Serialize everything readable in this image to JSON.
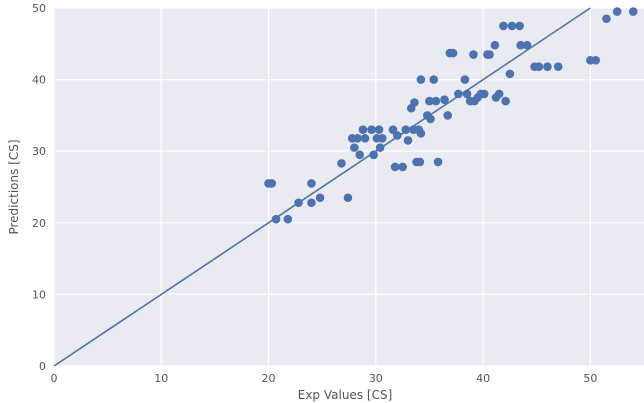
{
  "chart_data": {
    "type": "scatter",
    "title": "",
    "xlabel": "Exp Values [CS]",
    "ylabel": "Predictions [CS]",
    "xlim": [
      0,
      55
    ],
    "ylim": [
      0,
      50
    ],
    "xticks": [
      0,
      10,
      20,
      30,
      40,
      50
    ],
    "yticks": [
      0,
      10,
      20,
      30,
      40,
      50
    ],
    "grid": true,
    "background": "#EAEAF2",
    "grid_color": "#FFFFFF",
    "marker_color": "#4C72B0",
    "line_color": "#4C72B0",
    "reference_line": {
      "slope": 1,
      "intercept": 0
    },
    "series": [
      {
        "points": [
          [
            20.0,
            25.5
          ],
          [
            20.3,
            25.5
          ],
          [
            20.7,
            20.5
          ],
          [
            21.8,
            20.5
          ],
          [
            22.8,
            22.8
          ],
          [
            24.0,
            22.8
          ],
          [
            24.0,
            25.5
          ],
          [
            24.8,
            23.5
          ],
          [
            26.8,
            28.3
          ],
          [
            27.4,
            23.5
          ],
          [
            27.8,
            31.8
          ],
          [
            28.0,
            30.5
          ],
          [
            28.3,
            31.8
          ],
          [
            28.5,
            29.5
          ],
          [
            28.8,
            33.0
          ],
          [
            29.0,
            31.8
          ],
          [
            29.6,
            33.0
          ],
          [
            29.8,
            29.5
          ],
          [
            30.1,
            31.8
          ],
          [
            30.3,
            33.0
          ],
          [
            30.4,
            30.5
          ],
          [
            30.6,
            31.8
          ],
          [
            31.6,
            33.0
          ],
          [
            31.8,
            27.8
          ],
          [
            32.0,
            32.2
          ],
          [
            32.5,
            27.8
          ],
          [
            32.8,
            33.0
          ],
          [
            33.0,
            31.5
          ],
          [
            33.3,
            36.0
          ],
          [
            33.6,
            36.8
          ],
          [
            33.5,
            33.0
          ],
          [
            33.8,
            28.5
          ],
          [
            34.0,
            33.0
          ],
          [
            34.1,
            28.5
          ],
          [
            34.2,
            32.5
          ],
          [
            34.2,
            40.0
          ],
          [
            34.8,
            35.0
          ],
          [
            35.0,
            37.0
          ],
          [
            35.1,
            34.5
          ],
          [
            35.4,
            40.0
          ],
          [
            35.6,
            37.0
          ],
          [
            35.8,
            28.5
          ],
          [
            36.4,
            37.2
          ],
          [
            36.7,
            35.0
          ],
          [
            36.9,
            43.7
          ],
          [
            37.2,
            43.7
          ],
          [
            37.7,
            38.0
          ],
          [
            38.3,
            40.0
          ],
          [
            38.5,
            38.0
          ],
          [
            38.8,
            37.0
          ],
          [
            39.1,
            43.5
          ],
          [
            39.2,
            37.0
          ],
          [
            39.5,
            37.5
          ],
          [
            39.8,
            38.0
          ],
          [
            40.1,
            38.0
          ],
          [
            40.4,
            43.5
          ],
          [
            40.6,
            43.5
          ],
          [
            41.1,
            44.8
          ],
          [
            41.2,
            37.5
          ],
          [
            41.5,
            38.0
          ],
          [
            41.9,
            47.5
          ],
          [
            42.1,
            37.0
          ],
          [
            42.5,
            40.8
          ],
          [
            42.7,
            47.5
          ],
          [
            43.4,
            47.5
          ],
          [
            43.5,
            44.8
          ],
          [
            44.1,
            44.8
          ],
          [
            44.8,
            41.8
          ],
          [
            45.2,
            41.8
          ],
          [
            46.0,
            41.8
          ],
          [
            47.0,
            41.8
          ],
          [
            50.0,
            42.7
          ],
          [
            50.5,
            42.7
          ],
          [
            51.5,
            48.5
          ],
          [
            52.5,
            49.5
          ],
          [
            54.0,
            49.5
          ]
        ]
      }
    ]
  }
}
